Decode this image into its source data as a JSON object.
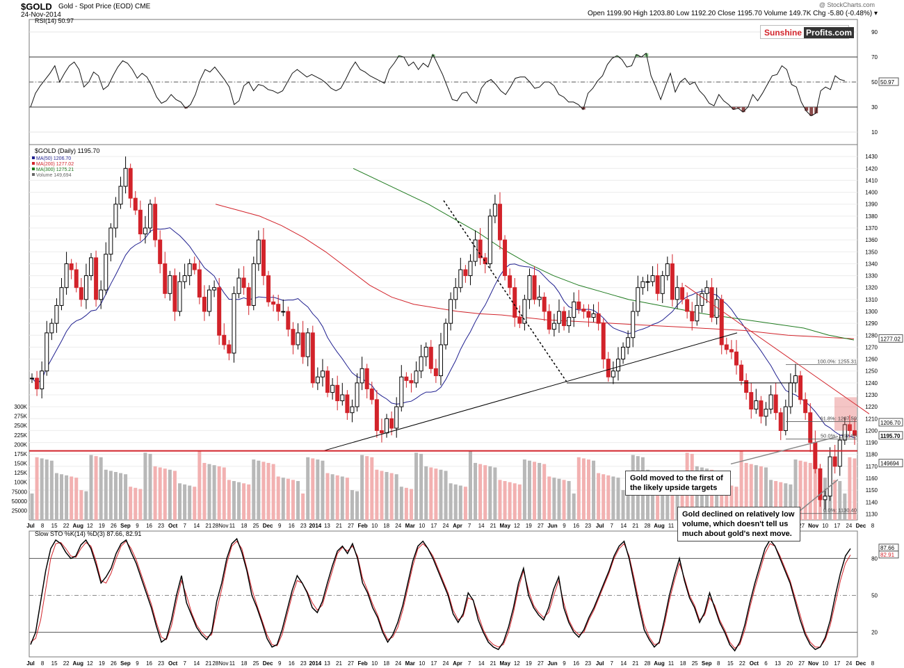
{
  "header": {
    "symbol": "$GOLD",
    "subtitle": "Gold - Spot Price (EOD)  CME",
    "date": "24-Nov-2014",
    "ohlc": "Open 1199.90  High 1203.80  Low 1192.20  Close 1195.70  Volume 149.7K  Chg -5.80 (-0.48%) ▾",
    "watermark": "@ StockCharts.com"
  },
  "logo": {
    "part1": "Sunshine",
    "part2": "Profits.com"
  },
  "annotations": {
    "upside": "Gold moved to the first of the likely upside targets",
    "volume": "Gold declined on relatively low volume, which doesn't tell us much about gold's next move."
  },
  "colors": {
    "up": "#000000",
    "down": "#d2232a",
    "ma50": "#1f1f8f",
    "ma200": "#d2232a",
    "ma300": "#1e7a1e",
    "volume": "#b8b8b8",
    "volume_down": "#f2b1b1",
    "rsi_overbought": "#7fbf7f",
    "rsi_oversold": "#8b4a4a"
  },
  "chart_data": [
    {
      "type": "line",
      "panel": "rsi",
      "label": "RSI(14) 50.97",
      "ylim": [
        0,
        100
      ],
      "y_ticks": [
        10,
        30,
        50,
        70,
        90
      ],
      "levels": [
        30,
        70
      ],
      "last_value_label": "50.97",
      "series": [
        {
          "name": "RSI(14)",
          "values": [
            30,
            41,
            47,
            52,
            57,
            63,
            50,
            57,
            63,
            66,
            60,
            46,
            50,
            58,
            55,
            44,
            47,
            55,
            62,
            67,
            65,
            60,
            53,
            57,
            54,
            47,
            38,
            33,
            35,
            40,
            36,
            34,
            29,
            32,
            40,
            52,
            60,
            58,
            62,
            57,
            52,
            46,
            32,
            35,
            47,
            50,
            43,
            48,
            47,
            44,
            43,
            41,
            43,
            50,
            57,
            60,
            57,
            54,
            56,
            54,
            52,
            49,
            45,
            43,
            45,
            52,
            60,
            66,
            60,
            58,
            55,
            53,
            51,
            49,
            60,
            65,
            71,
            70,
            63,
            66,
            60,
            65,
            62,
            72,
            64,
            56,
            46,
            36,
            35,
            41,
            42,
            36,
            33,
            45,
            50,
            52,
            48,
            43,
            40,
            46,
            53,
            54,
            54,
            50,
            45,
            46,
            50,
            50,
            47,
            40,
            38,
            34,
            34,
            32,
            28,
            41,
            45,
            51,
            55,
            64,
            69,
            71,
            68,
            62,
            63,
            72,
            70,
            73,
            55,
            46,
            36,
            47,
            57,
            42,
            50,
            53,
            48,
            50,
            43,
            39,
            33,
            31,
            40,
            35,
            32,
            28,
            29,
            26,
            30,
            40,
            35,
            41,
            48,
            55,
            56,
            63,
            60,
            48,
            46,
            34,
            27,
            23,
            25,
            43,
            46,
            44,
            55,
            52,
            51
          ]
        }
      ]
    },
    {
      "type": "line",
      "panel": "price",
      "title": "$GOLD (Daily) 1195.70",
      "legend": [
        "MA(50) 1206.70",
        "MA(200) 1277.02",
        "MA(300) 1275.21",
        "Volume 149,694"
      ],
      "ylim": [
        1125,
        1440
      ],
      "y_ticks": [
        1130,
        1140,
        1150,
        1160,
        1170,
        1180,
        1190,
        1200,
        1210,
        1220,
        1230,
        1240,
        1250,
        1260,
        1270,
        1280,
        1290,
        1300,
        1310,
        1320,
        1330,
        1340,
        1350,
        1360,
        1370,
        1380,
        1390,
        1400,
        1410,
        1420,
        1430
      ],
      "x_tick_labels": [
        "Jul",
        "8",
        "15",
        "22",
        "Aug",
        "12",
        "19",
        "26",
        "Sep",
        "9",
        "16",
        "23",
        "Oct",
        "7",
        "14",
        "21",
        "28Nov",
        "11",
        "18",
        "25",
        "Dec",
        "9",
        "16",
        "23",
        "2014",
        "13",
        "21",
        "27",
        "Feb",
        "10",
        "18",
        "24",
        "Mar",
        "10",
        "17",
        "24",
        "Apr",
        "7",
        "14",
        "21",
        "May",
        "12",
        "19",
        "27",
        "Jun",
        "9",
        "16",
        "23",
        "Jul",
        "7",
        "14",
        "21",
        "28",
        "Aug",
        "11",
        "18",
        "25",
        "Sep",
        "8",
        "15",
        "22",
        "Oct",
        "6",
        "13",
        "20",
        "27",
        "Nov",
        "10",
        "17",
        "24",
        "Dec",
        "8"
      ],
      "close": [
        1244,
        1235,
        1250,
        1282,
        1290,
        1305,
        1320,
        1340,
        1335,
        1320,
        1310,
        1330,
        1345,
        1310,
        1318,
        1348,
        1370,
        1390,
        1405,
        1420,
        1395,
        1385,
        1365,
        1370,
        1390,
        1360,
        1340,
        1315,
        1330,
        1300,
        1325,
        1330,
        1340,
        1335,
        1312,
        1300,
        1318,
        1320,
        1280,
        1272,
        1265,
        1315,
        1328,
        1320,
        1305,
        1340,
        1360,
        1330,
        1308,
        1306,
        1300,
        1300,
        1285,
        1272,
        1282,
        1262,
        1282,
        1240,
        1245,
        1250,
        1232,
        1238,
        1225,
        1230,
        1215,
        1220,
        1240,
        1252,
        1235,
        1226,
        1200,
        1198,
        1210,
        1202,
        1220,
        1245,
        1242,
        1240,
        1250,
        1262,
        1270,
        1252,
        1246,
        1272,
        1290,
        1310,
        1320,
        1335,
        1330,
        1342,
        1360,
        1345,
        1340,
        1380,
        1390,
        1360,
        1330,
        1320,
        1295,
        1290,
        1310,
        1330,
        1310,
        1312,
        1300,
        1285,
        1290,
        1300,
        1288,
        1295,
        1308,
        1302,
        1300,
        1295,
        1298,
        1290,
        1260,
        1245,
        1250,
        1260,
        1270,
        1278,
        1300,
        1320,
        1325,
        1325,
        1330,
        1315,
        1330,
        1340,
        1310,
        1320,
        1310,
        1300,
        1292,
        1305,
        1315,
        1320,
        1295,
        1310,
        1272,
        1268,
        1266,
        1255,
        1242,
        1232,
        1218,
        1225,
        1212,
        1218,
        1230,
        1215,
        1200,
        1220,
        1240,
        1246,
        1226,
        1215,
        1190,
        1168,
        1142,
        1145,
        1178,
        1170,
        1192,
        1205,
        1200,
        1196
      ],
      "annotations": {
        "fib_retracement": [
          {
            "label": "100.0%: 1255.31",
            "value": 1255.31
          },
          {
            "label": "61.8%: 1207.59",
            "value": 1207.59
          },
          {
            "label": "50.0%: 1192.85",
            "value": 1192.85
          },
          {
            "label": "0.0%: 1130.40",
            "value": 1130.4
          }
        ],
        "support_level": 1183,
        "horizontal_line": 1240,
        "price_labels": [
          "1277.02",
          "1206.70",
          "1195.70"
        ]
      }
    },
    {
      "type": "bar",
      "panel": "volume",
      "y_tick_labels": [
        "25000",
        "50000",
        "75000",
        "100K",
        "125K",
        "150K",
        "175K",
        "200K",
        "225K",
        "250K",
        "275K",
        "300K"
      ],
      "ylim": [
        0,
        300000
      ],
      "last_value_label": "149694"
    },
    {
      "type": "line",
      "panel": "stochastic",
      "label": "Slow STO %K(14) %D(3) 87.66, 82.91",
      "ylim": [
        0,
        100
      ],
      "y_ticks": [
        20,
        50,
        80
      ],
      "last_value_labels": [
        "87.66",
        "82.91"
      ],
      "series": [
        {
          "name": "%K",
          "values": [
            10,
            20,
            45,
            70,
            88,
            95,
            92,
            85,
            80,
            82,
            91,
            95,
            88,
            75,
            60,
            65,
            72,
            84,
            92,
            95,
            85,
            76,
            64,
            52,
            40,
            25,
            12,
            15,
            30,
            50,
            66,
            44,
            34,
            24,
            18,
            14,
            20,
            45,
            60,
            80,
            92,
            96,
            85,
            70,
            50,
            40,
            28,
            15,
            8,
            10,
            22,
            38,
            54,
            66,
            60,
            52,
            40,
            36,
            45,
            60,
            74,
            86,
            90,
            84,
            92,
            80,
            60,
            52,
            40,
            32,
            20,
            12,
            18,
            28,
            42,
            60,
            78,
            90,
            94,
            88,
            80,
            70,
            60,
            50,
            35,
            28,
            35,
            52,
            46,
            30,
            20,
            12,
            8,
            6,
            12,
            24,
            40,
            60,
            72,
            50,
            40,
            34,
            30,
            40,
            55,
            65,
            40,
            28,
            20,
            16,
            22,
            32,
            40,
            50,
            60,
            70,
            82,
            90,
            94,
            80,
            60,
            40,
            22,
            14,
            8,
            12,
            30,
            50,
            66,
            80,
            62,
            48,
            40,
            28,
            36,
            52,
            40,
            28,
            20,
            10,
            5,
            12,
            26,
            44,
            60,
            74,
            88,
            95,
            90,
            80,
            70,
            60,
            45,
            30,
            18,
            10,
            6,
            8,
            16,
            30,
            50,
            68,
            82,
            88
          ]
        },
        {
          "name": "%D",
          "values": [
            12,
            15,
            30,
            55,
            80,
            92,
            93,
            88,
            82,
            81,
            88,
            93,
            90,
            78,
            62,
            60,
            68,
            80,
            90,
            94,
            88,
            79,
            67,
            55,
            43,
            28,
            16,
            14,
            25,
            45,
            62,
            50,
            36,
            26,
            20,
            16,
            18,
            38,
            55,
            76,
            90,
            94,
            88,
            72,
            55,
            42,
            30,
            18,
            10,
            9,
            18,
            34,
            50,
            62,
            60,
            53,
            44,
            38,
            42,
            56,
            70,
            84,
            89,
            86,
            90,
            82,
            64,
            54,
            43,
            34,
            22,
            14,
            16,
            24,
            38,
            56,
            74,
            88,
            92,
            88,
            82,
            72,
            62,
            52,
            38,
            30,
            33,
            48,
            46,
            34,
            22,
            14,
            10,
            8,
            10,
            20,
            36,
            56,
            70,
            54,
            42,
            36,
            32,
            36,
            50,
            62,
            44,
            30,
            22,
            18,
            20,
            30,
            38,
            48,
            58,
            68,
            80,
            88,
            92,
            82,
            64,
            44,
            26,
            16,
            10,
            11,
            26,
            46,
            62,
            76,
            64,
            50,
            42,
            30,
            34,
            48,
            42,
            30,
            22,
            12,
            7,
            10,
            22,
            40,
            56,
            70,
            84,
            92,
            90,
            82,
            72,
            62,
            48,
            34,
            20,
            12,
            8,
            8,
            14,
            26,
            44,
            62,
            76,
            82.91
          ]
        }
      ]
    }
  ]
}
